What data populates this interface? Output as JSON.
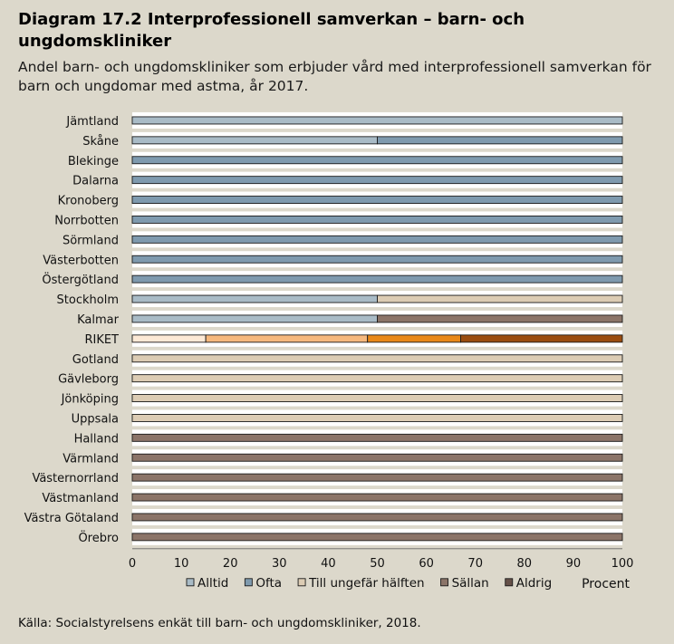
{
  "header": {
    "title": "Diagram 17.2 Interprofessionell samverkan – barn- och ungdomskliniker",
    "subtitle": "Andel barn- och ungdomskliniker som erbjuder vård med interprofessionell samverkan för barn och ungdomar med astma, år 2017."
  },
  "footer": {
    "source": "Källa: Socialstyrelsens enkät till barn- och ungdomskliniker, 2018."
  },
  "chart_data": {
    "type": "bar",
    "orientation": "horizontal",
    "stacked": true,
    "categories": [
      "Jämtland",
      "Skåne",
      "Blekinge",
      "Dalarna",
      "Kronoberg",
      "Norrbotten",
      "Sörmland",
      "Västerbotten",
      "Östergötland",
      "Stockholm",
      "Kalmar",
      "RIKET",
      "Gotland",
      "Gävleborg",
      "Jönköping",
      "Uppsala",
      "Halland",
      "Värmland",
      "Västernorrland",
      "Västmanland",
      "Västra Götaland",
      "Örebro"
    ],
    "series": [
      {
        "name": "Alltid",
        "values": [
          100,
          50,
          0,
          0,
          0,
          0,
          0,
          0,
          0,
          50,
          50,
          15,
          0,
          0,
          0,
          0,
          0,
          0,
          0,
          0,
          0,
          0
        ]
      },
      {
        "name": "Ofta",
        "values": [
          0,
          50,
          100,
          100,
          100,
          100,
          100,
          100,
          100,
          0,
          0,
          33,
          0,
          0,
          0,
          0,
          0,
          0,
          0,
          0,
          0,
          0
        ]
      },
      {
        "name": "Till ungefär hälften",
        "values": [
          0,
          0,
          0,
          0,
          0,
          0,
          0,
          0,
          0,
          50,
          0,
          19,
          100,
          100,
          100,
          100,
          0,
          0,
          0,
          0,
          0,
          0
        ]
      },
      {
        "name": "Sällan",
        "values": [
          0,
          0,
          0,
          0,
          0,
          0,
          0,
          0,
          0,
          0,
          50,
          33,
          0,
          0,
          0,
          0,
          100,
          100,
          100,
          100,
          100,
          100
        ]
      },
      {
        "name": "Aldrig",
        "values": [
          0,
          0,
          0,
          0,
          0,
          0,
          0,
          0,
          0,
          0,
          0,
          0,
          0,
          0,
          0,
          0,
          0,
          0,
          0,
          0,
          0,
          0
        ]
      }
    ],
    "colors": [
      "#a9bbc6",
      "#7f9aae",
      "#dcccb4",
      "#8b7468",
      "#655048"
    ],
    "highlight_category": "RIKET",
    "highlight_colors": [
      "#fde9d6",
      "#f6b87d",
      "#e98818",
      "#9a4d10",
      "#6b3508"
    ],
    "xlim": [
      0,
      100
    ],
    "xticks": [
      0,
      10,
      20,
      30,
      40,
      50,
      60,
      70,
      80,
      90,
      100
    ],
    "xlabel": "Procent",
    "grid": false,
    "legend_position": "bottom"
  }
}
